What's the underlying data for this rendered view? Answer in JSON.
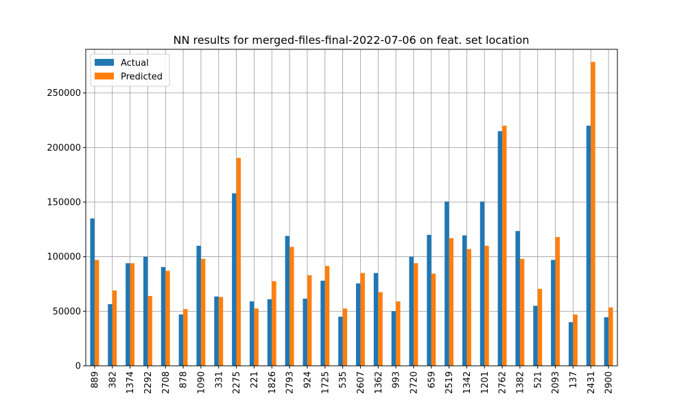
{
  "chart_data": {
    "type": "bar",
    "title": "NN results for merged-files-final-2022-07-06 on feat. set location",
    "xlabel": "",
    "ylabel": "",
    "ylim": [
      0,
      290000
    ],
    "yticks": [
      0,
      50000,
      100000,
      150000,
      200000,
      250000
    ],
    "grid": true,
    "legend_position": "top-left",
    "categories": [
      "889",
      "382",
      "1374",
      "2292",
      "2708",
      "878",
      "1090",
      "331",
      "2275",
      "221",
      "1826",
      "2793",
      "924",
      "1725",
      "535",
      "2607",
      "1362",
      "993",
      "2720",
      "659",
      "2519",
      "1342",
      "1201",
      "2762",
      "1382",
      "521",
      "2093",
      "137",
      "2431",
      "2900"
    ],
    "series": [
      {
        "name": "Actual",
        "color": "#1f77b4",
        "values": [
          135000,
          56500,
          94000,
          100000,
          90500,
          47000,
          110000,
          63500,
          158000,
          59000,
          61000,
          119000,
          61500,
          78000,
          45000,
          75500,
          85000,
          50000,
          100000,
          120000,
          150500,
          119500,
          150500,
          215000,
          123500,
          55000,
          97000,
          40000,
          220000,
          44500
        ]
      },
      {
        "name": "Predicted",
        "color": "#ff7f0e",
        "values": [
          97000,
          69000,
          94000,
          64000,
          87000,
          52000,
          98000,
          63000,
          190500,
          52500,
          77500,
          109000,
          83000,
          91500,
          52500,
          85000,
          67500,
          59000,
          94000,
          84500,
          117000,
          107000,
          110000,
          220000,
          98000,
          70500,
          118000,
          47000,
          278500,
          53500
        ]
      }
    ]
  }
}
